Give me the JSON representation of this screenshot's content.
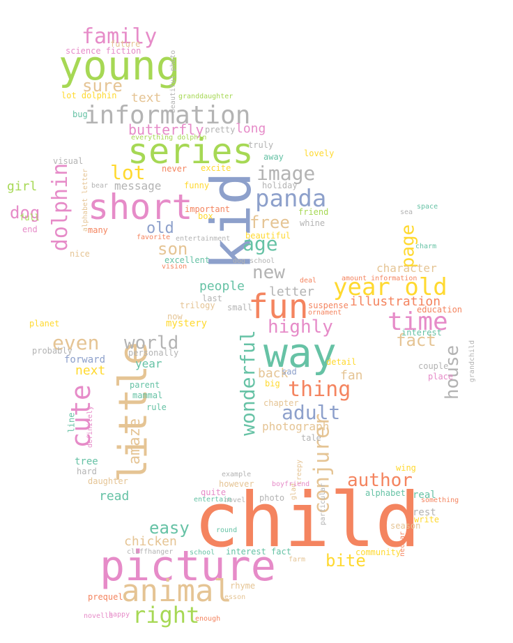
{
  "palette": {
    "orange": "#f4845f",
    "pink": "#e68bc8",
    "green": "#a6d854",
    "yellow": "#ffd92f",
    "tan": "#e5c494",
    "gray": "#b3b3b3",
    "teal": "#66c2a5",
    "blue": "#8da0cb"
  },
  "words": [
    {
      "text": "child",
      "color": "orange"
    },
    {
      "text": "picture",
      "color": "pink"
    },
    {
      "text": "kid",
      "color": "blue"
    },
    {
      "text": "way",
      "color": "teal"
    },
    {
      "text": "series",
      "color": "green"
    },
    {
      "text": "young",
      "color": "green"
    },
    {
      "text": "little",
      "color": "tan"
    },
    {
      "text": "short",
      "color": "pink"
    },
    {
      "text": "information",
      "color": "gray"
    },
    {
      "text": "fun",
      "color": "orange"
    },
    {
      "text": "animal",
      "color": "tan"
    },
    {
      "text": "cute",
      "color": "pink"
    },
    {
      "text": "year old",
      "color": "yellow"
    },
    {
      "text": "time",
      "color": "pink"
    },
    {
      "text": "panda",
      "color": "blue"
    },
    {
      "text": "family",
      "color": "pink"
    },
    {
      "text": "dolphin",
      "color": "pink"
    },
    {
      "text": "wonderful",
      "color": "teal"
    },
    {
      "text": "conjurer",
      "color": "tan"
    },
    {
      "text": "right",
      "color": "green"
    },
    {
      "text": "image",
      "color": "gray"
    },
    {
      "text": "world",
      "color": "gray"
    },
    {
      "text": "highly",
      "color": "pink"
    },
    {
      "text": "thing",
      "color": "orange"
    },
    {
      "text": "adult",
      "color": "blue"
    },
    {
      "text": "author",
      "color": "orange"
    },
    {
      "text": "house",
      "color": "gray"
    },
    {
      "text": "even",
      "color": "tan"
    },
    {
      "text": "lot",
      "color": "yellow"
    },
    {
      "text": "age",
      "color": "teal"
    },
    {
      "text": "free",
      "color": "tan"
    },
    {
      "text": "new",
      "color": "gray"
    },
    {
      "text": "son",
      "color": "tan"
    },
    {
      "text": "sure",
      "color": "tan"
    },
    {
      "text": "page",
      "color": "yellow"
    },
    {
      "text": "fact",
      "color": "tan"
    },
    {
      "text": "easy",
      "color": "teal"
    },
    {
      "text": "illustration",
      "color": "orange"
    },
    {
      "text": "bite",
      "color": "yellow"
    },
    {
      "text": "old",
      "color": "blue"
    },
    {
      "text": "butterfly",
      "color": "pink"
    },
    {
      "text": "dog",
      "color": "pink"
    },
    {
      "text": "amaze",
      "color": "tan"
    },
    {
      "text": "long",
      "color": "pink"
    },
    {
      "text": "chicken",
      "color": "tan"
    },
    {
      "text": "text",
      "color": "tan"
    },
    {
      "text": "message",
      "color": "gray"
    },
    {
      "text": "character",
      "color": "tan"
    },
    {
      "text": "letter",
      "color": "gray"
    },
    {
      "text": "people",
      "color": "teal"
    },
    {
      "text": "next",
      "color": "yellow"
    },
    {
      "text": "girl",
      "color": "green"
    },
    {
      "text": "back",
      "color": "tan"
    },
    {
      "text": "fan",
      "color": "tan"
    },
    {
      "text": "photograph",
      "color": "tan"
    },
    {
      "text": "year",
      "color": "teal"
    },
    {
      "text": "read",
      "color": "teal"
    },
    {
      "text": "mystery",
      "color": "yellow"
    },
    {
      "text": "community",
      "color": "yellow"
    },
    {
      "text": "alphabet",
      "color": "teal"
    },
    {
      "text": "real",
      "color": "teal"
    },
    {
      "text": "rest",
      "color": "gray"
    },
    {
      "text": "write",
      "color": "yellow"
    },
    {
      "text": "something",
      "color": "orange"
    },
    {
      "text": "forward",
      "color": "blue"
    },
    {
      "text": "daughter",
      "color": "tan"
    },
    {
      "text": "tree",
      "color": "teal"
    },
    {
      "text": "parent",
      "color": "teal"
    },
    {
      "text": "excellent",
      "color": "teal"
    },
    {
      "text": "important",
      "color": "orange"
    },
    {
      "text": "holiday",
      "color": "gray"
    },
    {
      "text": "friend",
      "color": "green"
    },
    {
      "text": "interest",
      "color": "teal"
    },
    {
      "text": "interest fact",
      "color": "teal"
    },
    {
      "text": "school",
      "color": "teal"
    },
    {
      "text": "round",
      "color": "teal"
    },
    {
      "text": "entertain",
      "color": "teal"
    },
    {
      "text": "quite",
      "color": "pink"
    },
    {
      "text": "photo",
      "color": "gray"
    },
    {
      "text": "wing",
      "color": "yellow"
    },
    {
      "text": "season",
      "color": "tan"
    },
    {
      "text": "rhyme",
      "color": "tan"
    },
    {
      "text": "lesson",
      "color": "tan"
    },
    {
      "text": "prequel",
      "color": "orange"
    },
    {
      "text": "happy",
      "color": "pink"
    },
    {
      "text": "hard",
      "color": "gray"
    },
    {
      "text": "however",
      "color": "tan"
    },
    {
      "text": "example",
      "color": "gray"
    },
    {
      "text": "novel",
      "color": "gray"
    },
    {
      "text": "tale",
      "color": "gray"
    },
    {
      "text": "chapter",
      "color": "tan"
    },
    {
      "text": "big",
      "color": "yellow"
    },
    {
      "text": "sad",
      "color": "blue"
    },
    {
      "text": "detail",
      "color": "yellow"
    },
    {
      "text": "education",
      "color": "orange"
    },
    {
      "text": "grandchild",
      "color": "gray"
    },
    {
      "text": "couple",
      "color": "gray"
    },
    {
      "text": "place",
      "color": "pink"
    },
    {
      "text": "suspense",
      "color": "orange"
    },
    {
      "text": "ornament",
      "color": "orange"
    },
    {
      "text": "deal",
      "color": "orange"
    },
    {
      "text": "small",
      "color": "gray"
    },
    {
      "text": "last",
      "color": "gray"
    },
    {
      "text": "trilogy",
      "color": "tan"
    },
    {
      "text": "now",
      "color": "tan"
    },
    {
      "text": "personally",
      "color": "gray"
    },
    {
      "text": "mammal",
      "color": "teal"
    },
    {
      "text": "rule",
      "color": "teal"
    },
    {
      "text": "planet",
      "color": "yellow"
    },
    {
      "text": "probably",
      "color": "gray"
    },
    {
      "text": "many",
      "color": "orange"
    },
    {
      "text": "nice",
      "color": "tan"
    },
    {
      "text": "end",
      "color": "pink"
    },
    {
      "text": "full",
      "color": "green"
    },
    {
      "text": "favorite",
      "color": "orange"
    },
    {
      "text": "vision",
      "color": "orange"
    },
    {
      "text": "truly",
      "color": "gray"
    },
    {
      "text": "away",
      "color": "teal"
    },
    {
      "text": "lovely",
      "color": "yellow"
    },
    {
      "text": "never",
      "color": "orange"
    },
    {
      "text": "funny",
      "color": "yellow"
    },
    {
      "text": "excite",
      "color": "yellow"
    },
    {
      "text": "bear",
      "color": "gray"
    },
    {
      "text": "beautiful",
      "color": "yellow"
    },
    {
      "text": "whine",
      "color": "gray"
    },
    {
      "text": "box",
      "color": "yellow"
    },
    {
      "text": "visual",
      "color": "gray"
    },
    {
      "text": "lot dolphin",
      "color": "yellow"
    },
    {
      "text": "science fiction",
      "color": "pink"
    },
    {
      "text": "future",
      "color": "tan"
    },
    {
      "text": "granddaughter",
      "color": "green"
    },
    {
      "text": "pretty",
      "color": "gray"
    },
    {
      "text": "bug",
      "color": "teal"
    },
    {
      "text": "line",
      "color": "teal"
    },
    {
      "text": "definitely",
      "color": "pink"
    },
    {
      "text": "alphabet letter",
      "color": "tan"
    },
    {
      "text": "space",
      "color": "teal"
    },
    {
      "text": "sea",
      "color": "gray"
    },
    {
      "text": "charm",
      "color": "teal"
    },
    {
      "text": "farm",
      "color": "tan"
    },
    {
      "text": "particular",
      "color": "gray"
    },
    {
      "text": "creepy",
      "color": "tan"
    },
    {
      "text": "glad",
      "color": "tan"
    },
    {
      "text": "cliffhanger",
      "color": "gray"
    },
    {
      "text": "novella",
      "color": "pink"
    },
    {
      "text": "enough",
      "color": "orange"
    },
    {
      "text": "nectar",
      "color": "orange"
    },
    {
      "text": "entertainment",
      "color": "gray"
    },
    {
      "text": "dog school",
      "color": "gray"
    },
    {
      "text": "everything dolphin",
      "color": "green"
    },
    {
      "text": "beautiful photo",
      "color": "gray"
    },
    {
      "text": "boyfriend",
      "color": "pink"
    },
    {
      "text": "amount information",
      "color": "orange"
    }
  ]
}
